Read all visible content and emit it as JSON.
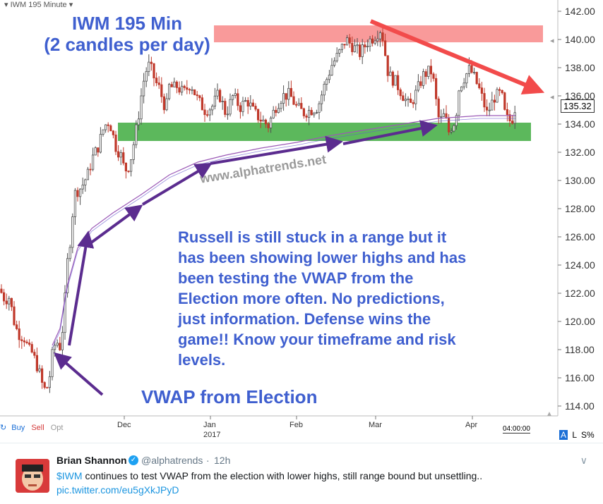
{
  "chart": {
    "ticker_label": "IWM 195 Minute",
    "title_line1": "IWM 195 Min",
    "title_line2": "(2 candles per day)",
    "watermark": "www.alphatrends.net",
    "annotation": "Russell is still stuck in a range but it has been showing lower highs and has been testing the VWAP from the Election more often.  No predictions, just information.  Defense wins the game!! Know your timeframe and risk levels.",
    "annotation_lines": [
      "Russell is still stuck in a range but it",
      "has been showing lower highs and has",
      "been testing the VWAP from the",
      "Election more often.  No predictions,",
      "just information.  Defense wins the",
      "game!! Know your timeframe and risk",
      "levels."
    ],
    "vwap_label": "VWAP from Election",
    "last_price": "135.32",
    "time_label": "04:00:00",
    "colors": {
      "resistance_zone": "#f99a9a",
      "support_zone": "#5cb85c",
      "annotation_text": "#3f5fcf",
      "arrow_purple": "#5b2c8f",
      "trend_arrow": "#f24b4b",
      "candle_up": "#4f4f4f",
      "candle_down": "#c0392b",
      "vwap_line": "#9b59b6"
    }
  },
  "chart_data": {
    "type": "candlestick",
    "ylim": [
      113.5,
      142.5
    ],
    "y_ticks": [
      "114.00",
      "116.00",
      "118.00",
      "120.00",
      "122.00",
      "124.00",
      "126.00",
      "128.00",
      "130.00",
      "132.00",
      "134.00",
      "136.00",
      "138.00",
      "140.00",
      "142.00"
    ],
    "x_tick_labels": [
      "Dec",
      "Jan",
      "Feb",
      "Mar",
      "Apr"
    ],
    "year_label": "2017",
    "resistance_zone": [
      139.8,
      141.0
    ],
    "support_zone": [
      132.8,
      134.1
    ],
    "close_path": [
      [
        0,
        122.3
      ],
      [
        4,
        121.8
      ],
      [
        8,
        121.5
      ],
      [
        12,
        121.9
      ],
      [
        16,
        121.0
      ],
      [
        20,
        120.0
      ],
      [
        25,
        119.2
      ],
      [
        30,
        119.0
      ],
      [
        35,
        118.8
      ],
      [
        40,
        118.0
      ],
      [
        45,
        117.8
      ],
      [
        50,
        117.2
      ],
      [
        55,
        116.5
      ],
      [
        60,
        115.5
      ],
      [
        65,
        115.0
      ],
      [
        70,
        116.0
      ],
      [
        75,
        118.0
      ],
      [
        80,
        118.6
      ],
      [
        85,
        118.2
      ],
      [
        90,
        120.0
      ],
      [
        95,
        124.0
      ],
      [
        100,
        126.0
      ],
      [
        105,
        129.0
      ],
      [
        110,
        129.3
      ],
      [
        115,
        129.5
      ],
      [
        120,
        130.0
      ],
      [
        125,
        130.5
      ],
      [
        130,
        131.5
      ],
      [
        135,
        132.0
      ],
      [
        140,
        132.5
      ],
      [
        145,
        133.5
      ],
      [
        150,
        134.0
      ],
      [
        155,
        134.2
      ],
      [
        160,
        133.2
      ],
      [
        165,
        132.2
      ],
      [
        170,
        132.0
      ],
      [
        175,
        131.0
      ],
      [
        180,
        130.7
      ],
      [
        185,
        131.5
      ],
      [
        190,
        132.8
      ],
      [
        195,
        134.2
      ],
      [
        200,
        136.0
      ],
      [
        205,
        137.5
      ],
      [
        210,
        138.2
      ],
      [
        215,
        137.8
      ],
      [
        220,
        137.0
      ],
      [
        225,
        136.6
      ],
      [
        230,
        135.8
      ],
      [
        235,
        135.0
      ],
      [
        240,
        136.8
      ],
      [
        245,
        136.5
      ],
      [
        250,
        136.7
      ],
      [
        260,
        136.2
      ],
      [
        270,
        136.9
      ],
      [
        280,
        135.7
      ],
      [
        290,
        135.0
      ],
      [
        300,
        135.2
      ],
      [
        310,
        136.2
      ],
      [
        320,
        134.7
      ],
      [
        330,
        136.0
      ],
      [
        340,
        135.2
      ],
      [
        350,
        135.7
      ],
      [
        360,
        134.8
      ],
      [
        370,
        134.3
      ],
      [
        380,
        133.9
      ],
      [
        390,
        135.2
      ],
      [
        400,
        136.0
      ],
      [
        410,
        136.1
      ],
      [
        420,
        135.2
      ],
      [
        430,
        134.8
      ],
      [
        440,
        135.0
      ],
      [
        450,
        135.2
      ],
      [
        460,
        136.8
      ],
      [
        470,
        138.2
      ],
      [
        480,
        139.0
      ],
      [
        490,
        140.0
      ],
      [
        500,
        139.5
      ],
      [
        510,
        139.0
      ],
      [
        520,
        139.8
      ],
      [
        530,
        140.2
      ],
      [
        540,
        140.8
      ],
      [
        550,
        137.5
      ],
      [
        560,
        137.0
      ],
      [
        570,
        136.1
      ],
      [
        580,
        135.2
      ],
      [
        590,
        136.3
      ],
      [
        600,
        137.5
      ],
      [
        610,
        137.8
      ],
      [
        615,
        136.8
      ],
      [
        620,
        134.5
      ],
      [
        625,
        134.3
      ],
      [
        630,
        134.7
      ],
      [
        635,
        133.4
      ],
      [
        640,
        133.9
      ],
      [
        645,
        134.3
      ],
      [
        650,
        136.5
      ],
      [
        655,
        137.1
      ],
      [
        660,
        137.5
      ],
      [
        665,
        137.9
      ],
      [
        670,
        137.5
      ],
      [
        680,
        136.3
      ],
      [
        690,
        134.7
      ],
      [
        700,
        135.9
      ],
      [
        710,
        136.2
      ],
      [
        715,
        134.7
      ],
      [
        720,
        134.2
      ],
      [
        725,
        134.3
      ],
      [
        730,
        135.3
      ]
    ],
    "vwap_path": [
      [
        74,
        118.3
      ],
      [
        85,
        119.5
      ],
      [
        95,
        122.5
      ],
      [
        110,
        125.2
      ],
      [
        130,
        126.6
      ],
      [
        160,
        127.7
      ],
      [
        200,
        129.0
      ],
      [
        240,
        130.4
      ],
      [
        280,
        131.3
      ],
      [
        320,
        131.8
      ],
      [
        370,
        132.3
      ],
      [
        420,
        132.7
      ],
      [
        470,
        133.2
      ],
      [
        520,
        133.6
      ],
      [
        570,
        134.0
      ],
      [
        620,
        134.4
      ],
      [
        680,
        134.6
      ],
      [
        730,
        134.6
      ]
    ]
  },
  "toolbar": {
    "buy_label": "Buy",
    "sell_label": "Sell",
    "opt_label": "Opt",
    "a_label": "A",
    "l_label": "L",
    "percent_label": "S%"
  },
  "tweet": {
    "name": "Brian Shannon",
    "handle": "@alphatrends",
    "dot": "·",
    "time": "12h",
    "text_cashtag": "$IWM",
    "text_rest": " continues to test VWAP from the election with lower highs, still range bound but unsettling..",
    "link": "pic.twitter.com/eu5gXkJPyD"
  }
}
